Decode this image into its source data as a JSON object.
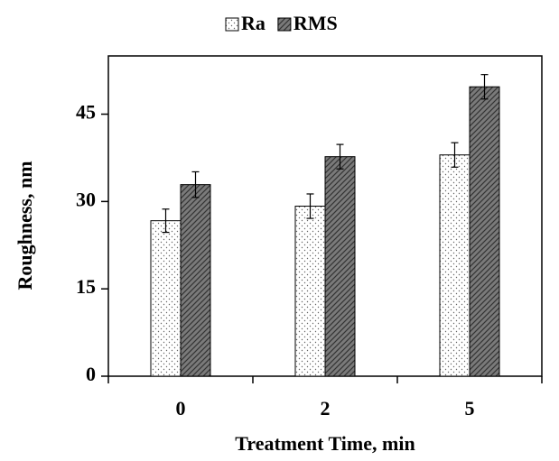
{
  "chart_data": {
    "type": "bar",
    "x_label": "Treatment Time, min",
    "y_label": "Roughness, nm",
    "categories": [
      "0",
      "2",
      "5"
    ],
    "series": [
      {
        "name": "Ra",
        "color": "#ffffff",
        "values": [
          26.7,
          29.2,
          38.0
        ],
        "errors": [
          2.0,
          2.1,
          2.1
        ]
      },
      {
        "name": "RMS",
        "color": "#7a7a7a",
        "values": [
          32.9,
          37.7,
          49.7
        ],
        "errors": [
          2.2,
          2.1,
          2.1
        ]
      }
    ],
    "ylim": [
      0,
      55
    ],
    "yticks": [
      0,
      15,
      30,
      45
    ],
    "legend": "top"
  }
}
